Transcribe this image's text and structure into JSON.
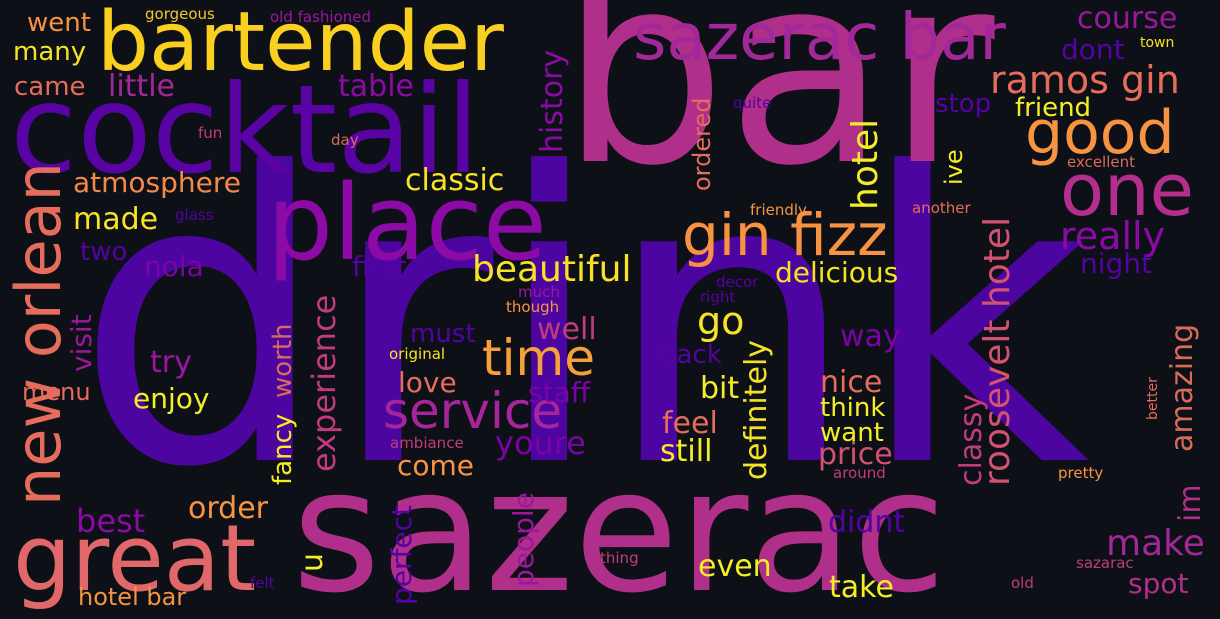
{
  "wordcloud": {
    "background": "#0d1016",
    "palette": "plasma",
    "words": [
      {
        "text": "drink",
        "color": "#4c05a0"
      },
      {
        "text": "bar",
        "color": "#b02f8a"
      },
      {
        "text": "sazerac",
        "color": "#b02f8a"
      },
      {
        "text": "cocktail",
        "color": "#5a03a5"
      },
      {
        "text": "bartender",
        "color": "#f9d020"
      },
      {
        "text": "place",
        "color": "#8c0aa5"
      },
      {
        "text": "sazerac bar",
        "color": "#a2289a"
      },
      {
        "text": "great",
        "color": "#e0676a"
      },
      {
        "text": "new orlean",
        "color": "#e66c5c"
      },
      {
        "text": "gin fizz",
        "color": "#f79340"
      },
      {
        "text": "one",
        "color": "#b42e8d"
      },
      {
        "text": "good",
        "color": "#f89441"
      },
      {
        "text": "service",
        "color": "#a7259b"
      },
      {
        "text": "time",
        "color": "#f6a03c"
      },
      {
        "text": "roosevelt hotel",
        "color": "#d35171"
      },
      {
        "text": "ramos gin",
        "color": "#e66c5c"
      },
      {
        "text": "really",
        "color": "#8a0aa5"
      },
      {
        "text": "hotel",
        "color": "#f4ee27"
      },
      {
        "text": "beautiful",
        "color": "#f7e225"
      },
      {
        "text": "experience",
        "color": "#c13b7f"
      },
      {
        "text": "make",
        "color": "#a2289a"
      },
      {
        "text": "course",
        "color": "#9c179e"
      },
      {
        "text": "classic",
        "color": "#f5e425"
      },
      {
        "text": "atmosphere",
        "color": "#f48a4a"
      },
      {
        "text": "made",
        "color": "#f7e225"
      },
      {
        "text": "little",
        "color": "#a2289a"
      },
      {
        "text": "table",
        "color": "#8c0aa5"
      },
      {
        "text": "history",
        "color": "#8c0aa5"
      },
      {
        "text": "delicious",
        "color": "#f4e225"
      },
      {
        "text": "definitely",
        "color": "#f4e225"
      },
      {
        "text": "classy",
        "color": "#c13b7f"
      },
      {
        "text": "amazing",
        "color": "#d86b5a"
      },
      {
        "text": "go",
        "color": "#f7e225"
      },
      {
        "text": "best",
        "color": "#8c0aa5"
      },
      {
        "text": "order",
        "color": "#f89441"
      },
      {
        "text": "hotel bar",
        "color": "#f79240"
      },
      {
        "text": "take",
        "color": "#f4ee27"
      },
      {
        "text": "even",
        "color": "#f4ee27"
      },
      {
        "text": "spot",
        "color": "#b02f8a"
      },
      {
        "text": "way",
        "color": "#7a03a8"
      },
      {
        "text": "nice",
        "color": "#e66c5c"
      },
      {
        "text": "think",
        "color": "#f4ee27"
      },
      {
        "text": "want",
        "color": "#f4ee27"
      },
      {
        "text": "price",
        "color": "#d35171"
      },
      {
        "text": "feel",
        "color": "#e66c5c"
      },
      {
        "text": "still",
        "color": "#f4ee27"
      },
      {
        "text": "bit",
        "color": "#f4ee27"
      },
      {
        "text": "back",
        "color": "#5402a3"
      },
      {
        "text": "love",
        "color": "#e66c5c"
      },
      {
        "text": "come",
        "color": "#f89441"
      },
      {
        "text": "well",
        "color": "#c13b7f"
      },
      {
        "text": "must",
        "color": "#5402a3"
      },
      {
        "text": "staff",
        "color": "#7a03a8"
      },
      {
        "text": "youre",
        "color": "#7a03a8"
      },
      {
        "text": "people",
        "color": "#9c179e"
      },
      {
        "text": "perfect",
        "color": "#5402a3"
      },
      {
        "text": "didnt",
        "color": "#5402a3"
      },
      {
        "text": "im",
        "color": "#b02f8a"
      },
      {
        "text": "u",
        "color": "#f4ee27"
      },
      {
        "text": "fancy",
        "color": "#f4ee27"
      },
      {
        "text": "worth",
        "color": "#d86b5a"
      },
      {
        "text": "try",
        "color": "#9c179e"
      },
      {
        "text": "enjoy",
        "color": "#f4ee27"
      },
      {
        "text": "menu",
        "color": "#e66c5c"
      },
      {
        "text": "visit",
        "color": "#9c179e"
      },
      {
        "text": "nola",
        "color": "#7a03a8"
      },
      {
        "text": "two",
        "color": "#5402a3"
      },
      {
        "text": "first",
        "color": "#5402a3"
      },
      {
        "text": "dont",
        "color": "#5402a3"
      },
      {
        "text": "friend",
        "color": "#f4ee27"
      },
      {
        "text": "stop",
        "color": "#5402a3"
      },
      {
        "text": "ive",
        "color": "#f4ee27"
      },
      {
        "text": "night",
        "color": "#5402a3"
      },
      {
        "text": "ordered",
        "color": "#e66c5c"
      },
      {
        "text": "went",
        "color": "#f79240"
      },
      {
        "text": "many",
        "color": "#f7e225"
      },
      {
        "text": "came",
        "color": "#e66c5c"
      },
      {
        "text": "gorgeous",
        "color": "#f0c930"
      },
      {
        "text": "old fashioned",
        "color": "#9c179e"
      },
      {
        "text": "town",
        "color": "#f4e225"
      },
      {
        "text": "quite",
        "color": "#5402a3"
      },
      {
        "text": "fun",
        "color": "#c13b7f"
      },
      {
        "text": "day",
        "color": "#d86b5a"
      },
      {
        "text": "glass",
        "color": "#5402a3"
      },
      {
        "text": "friendly",
        "color": "#f89441"
      },
      {
        "text": "another",
        "color": "#e66c5c"
      },
      {
        "text": "excellent",
        "color": "#d86b5a"
      },
      {
        "text": "much",
        "color": "#9c179e"
      },
      {
        "text": "though",
        "color": "#f89441"
      },
      {
        "text": "decor",
        "color": "#5402a3"
      },
      {
        "text": "right",
        "color": "#5402a3"
      },
      {
        "text": "original",
        "color": "#f4e225"
      },
      {
        "text": "ambiance",
        "color": "#c13b7f"
      },
      {
        "text": "around",
        "color": "#c13b7f"
      },
      {
        "text": "pretty",
        "color": "#f89441"
      },
      {
        "text": "better",
        "color": "#e66c5c"
      },
      {
        "text": "thing",
        "color": "#c13b7f"
      },
      {
        "text": "felt",
        "color": "#5402a3"
      },
      {
        "text": "old",
        "color": "#c13b7f"
      },
      {
        "text": "sazarac",
        "color": "#c13b7f"
      }
    ]
  }
}
